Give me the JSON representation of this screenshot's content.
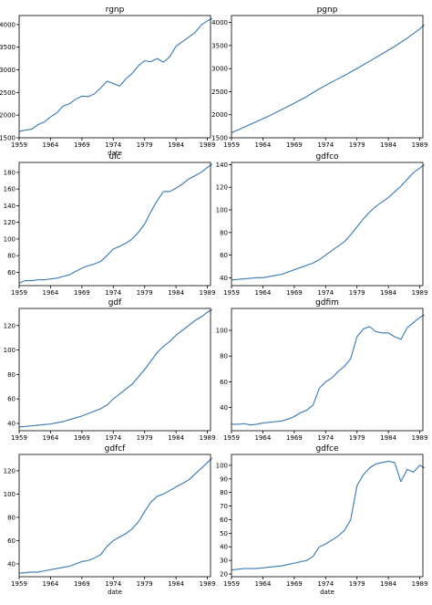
{
  "figure": {
    "line_color": "#3778b4"
  },
  "chart_data": [
    {
      "type": "line",
      "title": "rgnp",
      "xlabel": "date",
      "ylabel": "",
      "xlim": [
        1959,
        1989.5
      ],
      "ylim": [
        1500,
        4200
      ],
      "xticks": [
        1959,
        1964,
        1969,
        1974,
        1979,
        1984,
        1989
      ],
      "xtick_labels": [
        "1959",
        "1964",
        "1969",
        "1974",
        "1979",
        "1984",
        "1989"
      ],
      "yticks": [
        1500,
        2000,
        2500,
        3000,
        3500,
        4000
      ],
      "ytick_labels": [
        "1500",
        "2000",
        "2500",
        "3000",
        "3500",
        "4000"
      ],
      "series": [
        {
          "x": [
            1959,
            1960,
            1961,
            1962,
            1963,
            1964,
            1965,
            1966,
            1967,
            1968,
            1969,
            1970,
            1971,
            1972,
            1973,
            1974,
            1975,
            1976,
            1977,
            1978,
            1979,
            1980,
            1981,
            1982,
            1983,
            1984,
            1985,
            1986,
            1987,
            1988,
            1989,
            1989.75
          ],
          "y": [
            1640,
            1670,
            1690,
            1790,
            1850,
            1960,
            2050,
            2200,
            2250,
            2350,
            2420,
            2410,
            2470,
            2600,
            2750,
            2700,
            2640,
            2800,
            2920,
            3090,
            3200,
            3180,
            3250,
            3170,
            3290,
            3520,
            3620,
            3720,
            3820,
            3990,
            4080,
            4140
          ]
        }
      ]
    },
    {
      "type": "line",
      "title": "pgnp",
      "xlabel": "",
      "ylabel": "",
      "xlim": [
        1959,
        1989.5
      ],
      "ylim": [
        1500,
        4150
      ],
      "xticks": [
        1959,
        1964,
        1969,
        1974,
        1979,
        1984,
        1989
      ],
      "xtick_labels": [
        "1959",
        "1964",
        "1969",
        "1974",
        "1979",
        "1984",
        "1989"
      ],
      "yticks": [
        1500,
        2000,
        2500,
        3000,
        3500,
        4000
      ],
      "ytick_labels": [
        "1500",
        "2000",
        "2500",
        "3000",
        "3500",
        "4000"
      ],
      "series": [
        {
          "x": [
            1959,
            1961,
            1963,
            1965,
            1967,
            1969,
            1971,
            1973,
            1975,
            1977,
            1979,
            1981,
            1983,
            1985,
            1987,
            1989,
            1989.75
          ],
          "y": [
            1610,
            1730,
            1850,
            1975,
            2110,
            2250,
            2395,
            2560,
            2710,
            2850,
            3000,
            3160,
            3320,
            3480,
            3660,
            3860,
            3950
          ]
        }
      ]
    },
    {
      "type": "line",
      "title": "ulc",
      "xlabel": "",
      "ylabel": "",
      "xlim": [
        1959,
        1989.5
      ],
      "ylim": [
        44,
        192
      ],
      "xticks": [
        1959,
        1964,
        1969,
        1974,
        1979,
        1984,
        1989
      ],
      "xtick_labels": [
        "1959",
        "1964",
        "1969",
        "1974",
        "1979",
        "1984",
        "1989"
      ],
      "yticks": [
        60,
        80,
        100,
        120,
        140,
        160,
        180
      ],
      "ytick_labels": [
        "60",
        "80",
        "100",
        "120",
        "140",
        "160",
        "180"
      ],
      "series": [
        {
          "x": [
            1959,
            1960,
            1961,
            1962,
            1963,
            1964,
            1965,
            1966,
            1967,
            1968,
            1969,
            1970,
            1971,
            1972,
            1973,
            1974,
            1975,
            1976,
            1977,
            1978,
            1979,
            1980,
            1981,
            1982,
            1983,
            1984,
            1985,
            1986,
            1987,
            1988,
            1989,
            1989.75
          ],
          "y": [
            47,
            50,
            50,
            51,
            51,
            52,
            53,
            55,
            57,
            61,
            65,
            68,
            70,
            73,
            80,
            88,
            91,
            95,
            100,
            108,
            118,
            133,
            146,
            157,
            157,
            161,
            166,
            172,
            176,
            180,
            186,
            190
          ]
        }
      ]
    },
    {
      "type": "line",
      "title": "gdfco",
      "xlabel": "",
      "ylabel": "",
      "xlim": [
        1959,
        1989.5
      ],
      "ylim": [
        33,
        142
      ],
      "xticks": [
        1959,
        1964,
        1969,
        1974,
        1979,
        1984,
        1989
      ],
      "xtick_labels": [
        "1959",
        "1964",
        "1969",
        "1974",
        "1979",
        "1984",
        "1989"
      ],
      "yticks": [
        40,
        60,
        80,
        100,
        120,
        140
      ],
      "ytick_labels": [
        "40",
        "60",
        "80",
        "100",
        "120",
        "140"
      ],
      "series": [
        {
          "x": [
            1959,
            1960,
            1961,
            1962,
            1963,
            1964,
            1965,
            1966,
            1967,
            1968,
            1969,
            1970,
            1971,
            1972,
            1973,
            1974,
            1975,
            1976,
            1977,
            1978,
            1979,
            1980,
            1981,
            1982,
            1983,
            1984,
            1985,
            1986,
            1987,
            1988,
            1989,
            1989.75
          ],
          "y": [
            38,
            38.5,
            39,
            39.5,
            40,
            40,
            41,
            42,
            43,
            45,
            47,
            49,
            51,
            53,
            56,
            60,
            64,
            68,
            72,
            78,
            85,
            92,
            98,
            103,
            107,
            111,
            116,
            121,
            127,
            133,
            137,
            140
          ]
        }
      ]
    },
    {
      "type": "line",
      "title": "gdf",
      "xlabel": "",
      "ylabel": "",
      "xlim": [
        1959,
        1989.5
      ],
      "ylim": [
        34,
        134
      ],
      "xticks": [
        1959,
        1964,
        1969,
        1974,
        1979,
        1984,
        1989
      ],
      "xtick_labels": [
        "1959",
        "1964",
        "1969",
        "1974",
        "1979",
        "1984",
        "1989"
      ],
      "yticks": [
        40,
        60,
        80,
        100,
        120
      ],
      "ytick_labels": [
        "40",
        "60",
        "80",
        "100",
        "120"
      ],
      "series": [
        {
          "x": [
            1959,
            1960,
            1961,
            1962,
            1963,
            1964,
            1965,
            1966,
            1967,
            1968,
            1969,
            1970,
            1971,
            1972,
            1973,
            1974,
            1975,
            1976,
            1977,
            1978,
            1979,
            1980,
            1981,
            1982,
            1983,
            1984,
            1985,
            1986,
            1987,
            1988,
            1989,
            1989.75
          ],
          "y": [
            37,
            37.5,
            38,
            38.5,
            39,
            39.5,
            40.5,
            41.5,
            43,
            44.5,
            46,
            48,
            50,
            52,
            55,
            60,
            64,
            68,
            72,
            78,
            84,
            91,
            98,
            103,
            107,
            112,
            116,
            120,
            124,
            127,
            131,
            133
          ]
        }
      ]
    },
    {
      "type": "line",
      "title": "gdfim",
      "xlabel": "",
      "ylabel": "",
      "xlim": [
        1959,
        1989.5
      ],
      "ylim": [
        22,
        117
      ],
      "xticks": [
        1959,
        1964,
        1969,
        1974,
        1979,
        1984,
        1989
      ],
      "xtick_labels": [
        "1959",
        "1964",
        "1969",
        "1974",
        "1979",
        "1984",
        "1989"
      ],
      "yticks": [
        40,
        60,
        80,
        100
      ],
      "ytick_labels": [
        "40",
        "60",
        "80",
        "100"
      ],
      "series": [
        {
          "x": [
            1959,
            1960,
            1961,
            1962,
            1963,
            1964,
            1965,
            1966,
            1967,
            1968,
            1969,
            1970,
            1971,
            1972,
            1973,
            1974,
            1975,
            1976,
            1977,
            1978,
            1979,
            1980,
            1981,
            1982,
            1983,
            1984,
            1985,
            1986,
            1987,
            1988,
            1989,
            1989.75
          ],
          "y": [
            27,
            27,
            27.5,
            26.5,
            27,
            28,
            28.5,
            29,
            29.5,
            31,
            33,
            36,
            38,
            42,
            55,
            60,
            63,
            68,
            72,
            78,
            95,
            101,
            103,
            99,
            98,
            98,
            95,
            93,
            102,
            106,
            110,
            112
          ]
        }
      ]
    },
    {
      "type": "line",
      "title": "gdfcf",
      "xlabel": "date",
      "ylabel": "",
      "xlim": [
        1959,
        1989.5
      ],
      "ylim": [
        29,
        134
      ],
      "xticks": [
        1959,
        1964,
        1969,
        1974,
        1979,
        1984,
        1989
      ],
      "xtick_labels": [
        "1959",
        "1964",
        "1969",
        "1974",
        "1979",
        "1984",
        "1989"
      ],
      "yticks": [
        40,
        60,
        80,
        100,
        120
      ],
      "ytick_labels": [
        "40",
        "60",
        "80",
        "100",
        "120"
      ],
      "series": [
        {
          "x": [
            1959,
            1960,
            1961,
            1962,
            1963,
            1964,
            1965,
            1966,
            1967,
            1968,
            1969,
            1970,
            1971,
            1972,
            1973,
            1974,
            1975,
            1976,
            1977,
            1978,
            1979,
            1980,
            1981,
            1982,
            1983,
            1984,
            1985,
            1986,
            1987,
            1988,
            1989,
            1989.75
          ],
          "y": [
            32,
            32.5,
            33,
            33,
            34,
            35,
            36,
            37,
            38,
            40,
            42,
            43,
            45,
            48,
            55,
            60,
            63,
            66,
            70,
            76,
            85,
            93,
            98,
            100,
            103,
            106,
            109,
            112,
            117,
            122,
            127,
            131
          ]
        }
      ]
    },
    {
      "type": "line",
      "title": "gdfce",
      "xlabel": "date",
      "ylabel": "",
      "xlim": [
        1959,
        1989.5
      ],
      "ylim": [
        18,
        108
      ],
      "xticks": [
        1959,
        1964,
        1969,
        1974,
        1979,
        1984,
        1989
      ],
      "xtick_labels": [
        "1959",
        "1964",
        "1969",
        "1974",
        "1979",
        "1984",
        "1989"
      ],
      "yticks": [
        20,
        30,
        40,
        50,
        60,
        70,
        80,
        90,
        100
      ],
      "ytick_labels": [
        "20",
        "30",
        "40",
        "50",
        "60",
        "70",
        "80",
        "90",
        "100"
      ],
      "series": [
        {
          "x": [
            1959,
            1960,
            1961,
            1962,
            1963,
            1964,
            1965,
            1966,
            1967,
            1968,
            1969,
            1970,
            1971,
            1972,
            1973,
            1974,
            1975,
            1976,
            1977,
            1978,
            1979,
            1980,
            1981,
            1982,
            1983,
            1984,
            1985,
            1986,
            1987,
            1988,
            1989,
            1989.75
          ],
          "y": [
            23,
            23.5,
            24,
            24,
            24,
            24.5,
            25,
            25.5,
            26,
            27,
            28,
            29,
            30,
            33,
            40,
            42,
            45,
            48,
            52,
            60,
            85,
            93,
            98,
            101,
            102,
            103,
            102,
            88,
            97,
            95,
            100,
            98
          ]
        }
      ]
    }
  ]
}
